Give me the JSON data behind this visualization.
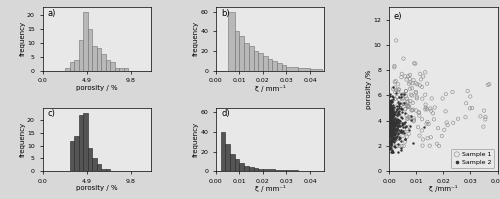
{
  "fig_width": 5.0,
  "fig_height": 1.99,
  "dpi": 100,
  "background_color": "#d8d8d8",
  "panel_bg": "#e8e8e8",
  "sample1_porosity_hist": {
    "bin_edges": [
      2.0,
      2.5,
      3.0,
      3.5,
      4.0,
      4.5,
      5.0,
      5.5,
      6.0,
      6.5,
      7.0,
      7.5,
      8.0,
      8.5,
      9.0,
      9.5,
      10.0
    ],
    "counts": [
      0,
      1,
      3,
      4,
      11,
      21,
      15,
      9,
      8,
      6,
      4,
      3,
      1,
      1,
      1,
      0
    ],
    "color": "#b8b8b8",
    "edgecolor": "#707070",
    "xlabel": "porosity / %",
    "ylabel": "frequency",
    "xlim": [
      0.0,
      12.0
    ],
    "ylim": [
      0,
      23
    ],
    "yticks": [
      0,
      5,
      10,
      15,
      20
    ],
    "xticks": [
      0.0,
      4.9,
      9.8
    ],
    "xticklabels": [
      "0.0",
      "4.9",
      "9.8"
    ],
    "label": "a)"
  },
  "sample1_xi_hist": {
    "bin_edges": [
      0.0,
      0.005,
      0.008,
      0.01,
      0.012,
      0.014,
      0.016,
      0.018,
      0.02,
      0.022,
      0.024,
      0.026,
      0.028,
      0.03,
      0.035,
      0.04,
      0.045
    ],
    "counts": [
      0,
      60,
      40,
      35,
      28,
      25,
      20,
      18,
      15,
      12,
      10,
      8,
      6,
      4,
      3,
      2
    ],
    "color": "#b8b8b8",
    "edgecolor": "#707070",
    "xlabel": "ξ / mm⁻¹",
    "ylabel": "frequency",
    "xlim": [
      0.0,
      0.046
    ],
    "ylim": [
      0,
      65
    ],
    "yticks": [
      0,
      20,
      40,
      60
    ],
    "xticks": [
      0.0,
      0.01,
      0.02,
      0.03,
      0.04
    ],
    "xticklabels": [
      "0.00",
      "0.01",
      "0.02",
      "0.03",
      "0.04"
    ],
    "label": "b)"
  },
  "sample2_porosity_hist": {
    "bin_edges": [
      2.0,
      2.5,
      3.0,
      3.5,
      4.0,
      4.5,
      5.0,
      5.5,
      6.0,
      6.5,
      7.0,
      7.5,
      8.0
    ],
    "counts": [
      0,
      0,
      12,
      14,
      22,
      23,
      9,
      5,
      3,
      1,
      1,
      0
    ],
    "color": "#555555",
    "edgecolor": "#222222",
    "xlabel": "porosity / %",
    "ylabel": "frequency",
    "xlim": [
      0.0,
      12.0
    ],
    "ylim": [
      0,
      25
    ],
    "yticks": [
      0,
      5,
      10,
      15,
      20
    ],
    "xticks": [
      0.0,
      4.9,
      9.8
    ],
    "xticklabels": [
      "0.0",
      "4.9",
      "9.8"
    ],
    "label": "c)"
  },
  "sample2_xi_hist": {
    "bin_edges": [
      0.0,
      0.002,
      0.004,
      0.006,
      0.008,
      0.01,
      0.012,
      0.014,
      0.016,
      0.018,
      0.02,
      0.025,
      0.03,
      0.035,
      0.04,
      0.045
    ],
    "counts": [
      0,
      40,
      28,
      18,
      12,
      8,
      5,
      4,
      3,
      2,
      2,
      1,
      1,
      0,
      0
    ],
    "color": "#555555",
    "edgecolor": "#222222",
    "xlabel": "ξ / mm⁻¹",
    "ylabel": "frequency",
    "xlim": [
      0.0,
      0.046
    ],
    "ylim": [
      0,
      65
    ],
    "yticks": [
      0,
      20,
      40,
      60
    ],
    "xticks": [
      0.0,
      0.01,
      0.02,
      0.03,
      0.04
    ],
    "xticklabels": [
      "0.00",
      "0.01",
      "0.02",
      "0.03",
      "0.04"
    ],
    "label": "d)"
  },
  "scatter": {
    "xlabel": "ξ /mm⁻¹",
    "ylabel": "porosity /%",
    "xlim": [
      0.0,
      0.04
    ],
    "ylim": [
      0,
      13
    ],
    "xticks": [
      0.0,
      0.01,
      0.02,
      0.03,
      0.04
    ],
    "yticks": [
      0,
      2,
      4,
      6,
      8,
      10,
      12
    ],
    "label": "e)",
    "sample1_color": "none",
    "sample1_edgecolor": "#888888",
    "sample2_color": "#333333",
    "sample1_marker": "o",
    "sample2_marker": "o",
    "sample1_size": 6,
    "sample2_size": 3,
    "sample1_label": "Sample 1",
    "sample2_label": "Sample 2"
  }
}
